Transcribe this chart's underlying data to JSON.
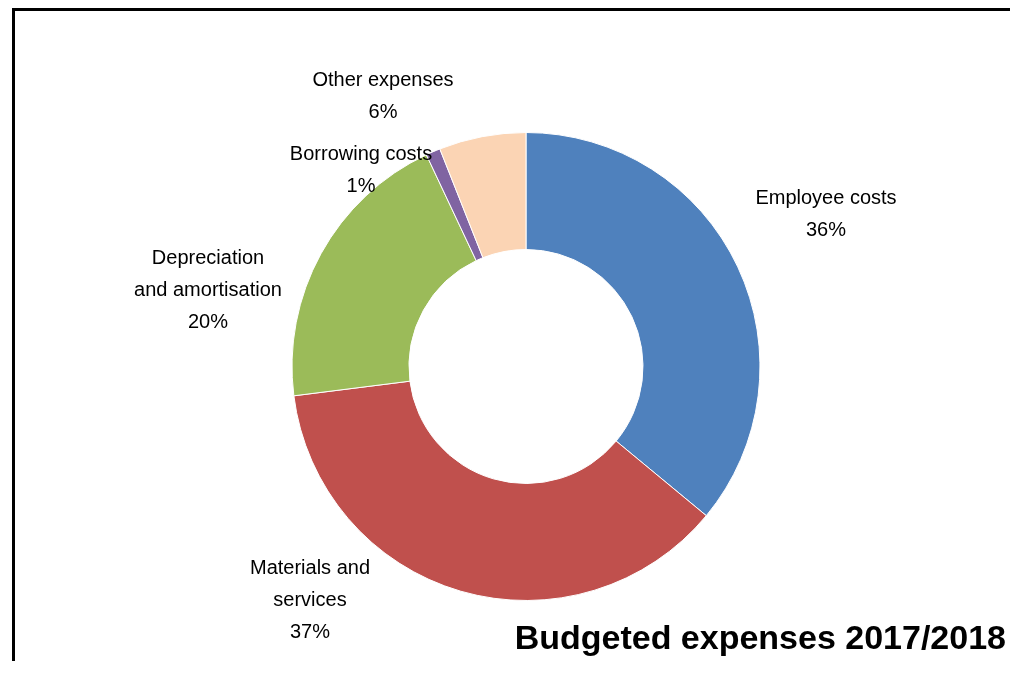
{
  "chart_data": {
    "type": "donut",
    "title": "Budgeted expenses 2017/2018",
    "categories": [
      "Employee costs",
      "Materials and services",
      "Depreciation and amortisation",
      "Borrowing costs",
      "Other expenses"
    ],
    "values": [
      36,
      37,
      20,
      1,
      6
    ],
    "value_labels": [
      "36%",
      "37%",
      "20%",
      "1%",
      "6%"
    ],
    "colors": [
      "#4f81bd",
      "#c0504d",
      "#9bbb59",
      "#8064a2",
      "#fbd4b4"
    ],
    "legend": false
  }
}
